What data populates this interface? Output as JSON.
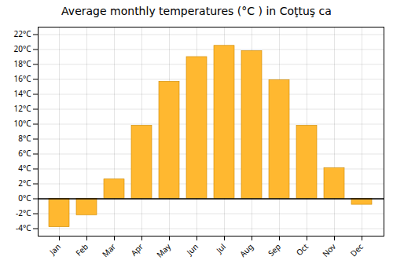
{
  "chart_data": {
    "type": "bar",
    "title": "Average monthly temperatures (°C ) in Coţtuş ca",
    "categories": [
      "Jan",
      "Feb",
      "Mar",
      "Apr",
      "May",
      "Jun",
      "Jul",
      "Aug",
      "Sep",
      "Oct",
      "Nov",
      "Dec"
    ],
    "values": [
      -3.8,
      -2.2,
      2.6,
      9.8,
      15.7,
      19.0,
      20.5,
      19.8,
      15.9,
      9.8,
      4.1,
      -0.8
    ],
    "color": "#FFB830",
    "ylim": [
      -5,
      23
    ],
    "yticks": [
      {
        "value": -4,
        "label": "-4°C"
      },
      {
        "value": -2,
        "label": "-2°C"
      },
      {
        "value": 0,
        "label": "0°C"
      },
      {
        "value": 2,
        "label": "2°C"
      },
      {
        "value": 4,
        "label": "4°C"
      },
      {
        "value": 6,
        "label": "6°C"
      },
      {
        "value": 8,
        "label": "8°C"
      },
      {
        "value": 10,
        "label": "10°C"
      },
      {
        "value": 12,
        "label": "12°C"
      },
      {
        "value": 14,
        "label": "14°C"
      },
      {
        "value": 16,
        "label": "16°C"
      },
      {
        "value": 18,
        "label": "18°C"
      },
      {
        "value": 20,
        "label": "20°C"
      },
      {
        "value": 22,
        "label": "22°C"
      }
    ],
    "grid": true
  }
}
